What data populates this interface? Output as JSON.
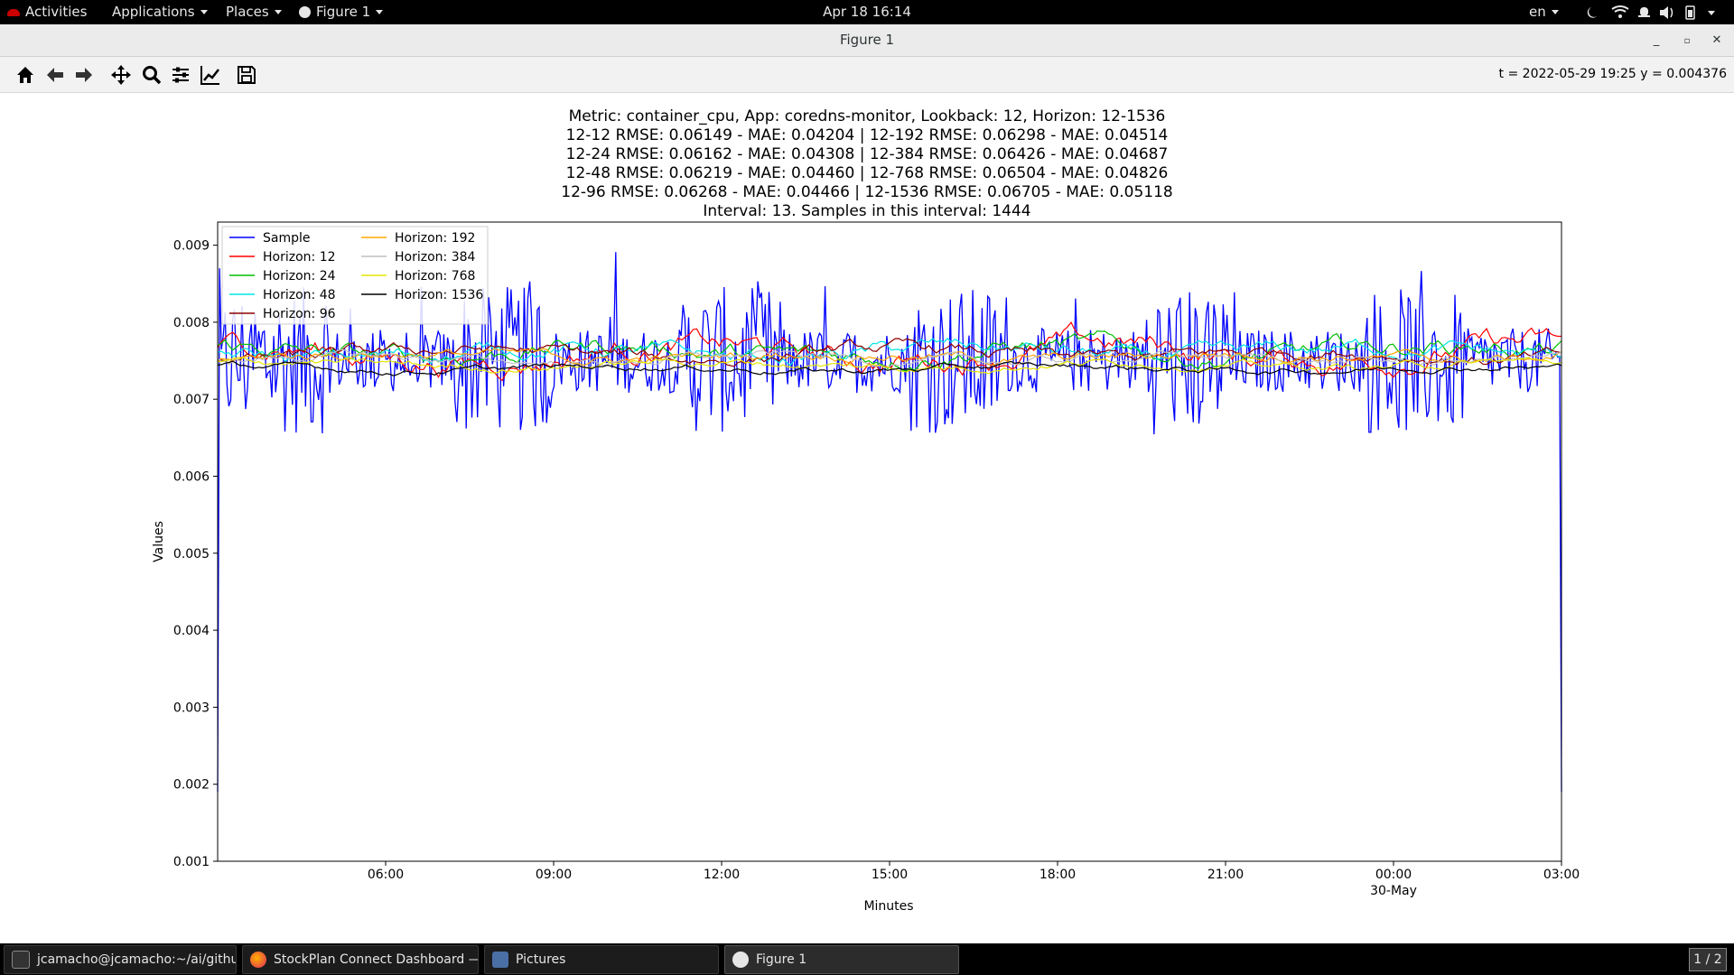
{
  "topbar": {
    "activities": "Activities",
    "applications": "Applications",
    "places": "Places",
    "app_menu": "Figure 1",
    "clock": "Apr 18  16:14",
    "lang": "en"
  },
  "window": {
    "title": "Figure 1"
  },
  "toolbar": {
    "coords": "t = 2022-05-29 19:25  y = 0.004376",
    "buttons": [
      "home-icon",
      "back-icon",
      "forward-icon",
      "pan-icon",
      "zoom-icon",
      "configure-subplots-icon",
      "edit-axis-icon",
      "save-icon"
    ]
  },
  "chart_title_lines": [
    "Metric: container_cpu, App: coredns-monitor, Lookback: 12, Horizon: 12-1536",
    "12-12 RMSE: 0.06149 - MAE: 0.04204 | 12-192 RMSE: 0.06298 - MAE: 0.04514",
    "12-24 RMSE: 0.06162 - MAE: 0.04308 | 12-384 RMSE: 0.06426 - MAE: 0.04687",
    "12-48 RMSE: 0.06219 - MAE: 0.04460 | 12-768 RMSE: 0.06504 - MAE: 0.04826",
    "12-96 RMSE: 0.06268 - MAE: 0.04466 | 12-1536 RMSE: 0.06705 - MAE: 0.05118",
    "Interval: 13. Samples in this interval: 1444"
  ],
  "chart_data": {
    "type": "line",
    "xlabel": "Minutes",
    "ylabel": "Values",
    "ylim": [
      0.001,
      0.0093
    ],
    "xlim": [
      "2022-05-29 03:00",
      "2022-05-30 03:00"
    ],
    "x_ticks": [
      "06:00",
      "09:00",
      "12:00",
      "15:00",
      "18:00",
      "21:00",
      "00:00",
      "03:00"
    ],
    "x_tick_sublabel": "30-May",
    "y_ticks": [
      "0.001",
      "0.002",
      "0.003",
      "0.004",
      "0.005",
      "0.006",
      "0.007",
      "0.008",
      "0.009"
    ],
    "legend_position": "top-left",
    "series": [
      {
        "name": "Sample",
        "color": "#0000ff",
        "base": 0.0075,
        "noise": 0.0006
      },
      {
        "name": "Horizon: 12",
        "color": "#ff0000",
        "base": 0.0076,
        "noise": 0.00018
      },
      {
        "name": "Horizon: 24",
        "color": "#00c000",
        "base": 0.00762,
        "noise": 0.00014
      },
      {
        "name": "Horizon: 48",
        "color": "#00e5e5",
        "base": 0.0076,
        "noise": 0.00012
      },
      {
        "name": "Horizon: 96",
        "color": "#8b0000",
        "base": 0.00758,
        "noise": 0.0001
      },
      {
        "name": "Horizon: 192",
        "color": "#ffa500",
        "base": 0.00756,
        "noise": 8e-05
      },
      {
        "name": "Horizon: 384",
        "color": "#c0c0c0",
        "base": 0.00752,
        "noise": 7e-05
      },
      {
        "name": "Horizon: 768",
        "color": "#e5e500",
        "base": 0.00745,
        "noise": 6e-05
      },
      {
        "name": "Horizon: 1536",
        "color": "#000000",
        "base": 0.0074,
        "noise": 5e-05
      }
    ]
  },
  "taskbar": {
    "tasks": [
      {
        "label": "jcamacho@jcamacho:~/ai/github/...",
        "icon": "terminal-icon"
      },
      {
        "label": "StockPlan Connect Dashboard — ...",
        "icon": "firefox-icon"
      },
      {
        "label": "Pictures",
        "icon": "files-icon"
      },
      {
        "label": "Figure 1",
        "icon": "figure-icon"
      }
    ],
    "pager": "1 / 2"
  }
}
